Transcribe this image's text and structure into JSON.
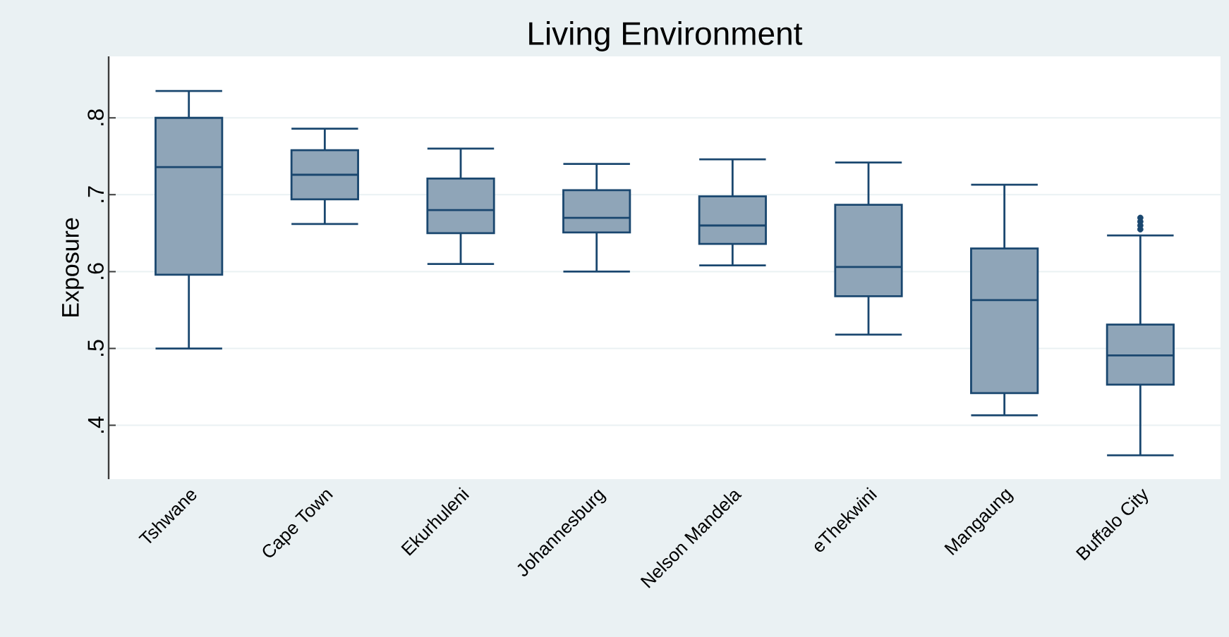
{
  "chart_data": {
    "type": "box",
    "title": "Living Environment",
    "ylabel": "Exposure",
    "categories": [
      "Tshwane",
      "Cape Town",
      "Ekurhuleni",
      "Johannesburg",
      "Nelson Mandela",
      "eThekwini",
      "Mangaung",
      "Buffalo City"
    ],
    "series": [
      {
        "color": "#8fa5b8",
        "boxes": [
          {
            "low": 0.5,
            "q1": 0.596,
            "median": 0.736,
            "q3": 0.8,
            "high": 0.835
          },
          {
            "low": 0.662,
            "q1": 0.694,
            "median": 0.726,
            "q3": 0.758,
            "high": 0.786
          },
          {
            "low": 0.61,
            "q1": 0.65,
            "median": 0.68,
            "q3": 0.721,
            "high": 0.76
          },
          {
            "low": 0.6,
            "q1": 0.651,
            "median": 0.67,
            "q3": 0.706,
            "high": 0.74
          },
          {
            "low": 0.608,
            "q1": 0.636,
            "median": 0.66,
            "q3": 0.698,
            "high": 0.746
          },
          {
            "low": 0.518,
            "q1": 0.568,
            "median": 0.606,
            "q3": 0.687,
            "high": 0.742
          },
          {
            "low": 0.413,
            "q1": 0.442,
            "median": 0.563,
            "q3": 0.63,
            "high": 0.713
          },
          {
            "low": 0.361,
            "q1": 0.453,
            "median": 0.491,
            "q3": 0.531,
            "high": 0.647,
            "outliers": [
              0.67,
              0.665,
              0.66,
              0.655
            ]
          }
        ]
      }
    ],
    "ylim": [
      0.33,
      0.88
    ],
    "yticks": [
      {
        "value": 0.4,
        "label": ".4"
      },
      {
        "value": 0.5,
        "label": ".5"
      },
      {
        "value": 0.6,
        "label": ".6"
      },
      {
        "value": 0.7,
        "label": ".7"
      },
      {
        "value": 0.8,
        "label": ".8"
      }
    ],
    "grid": "y"
  }
}
